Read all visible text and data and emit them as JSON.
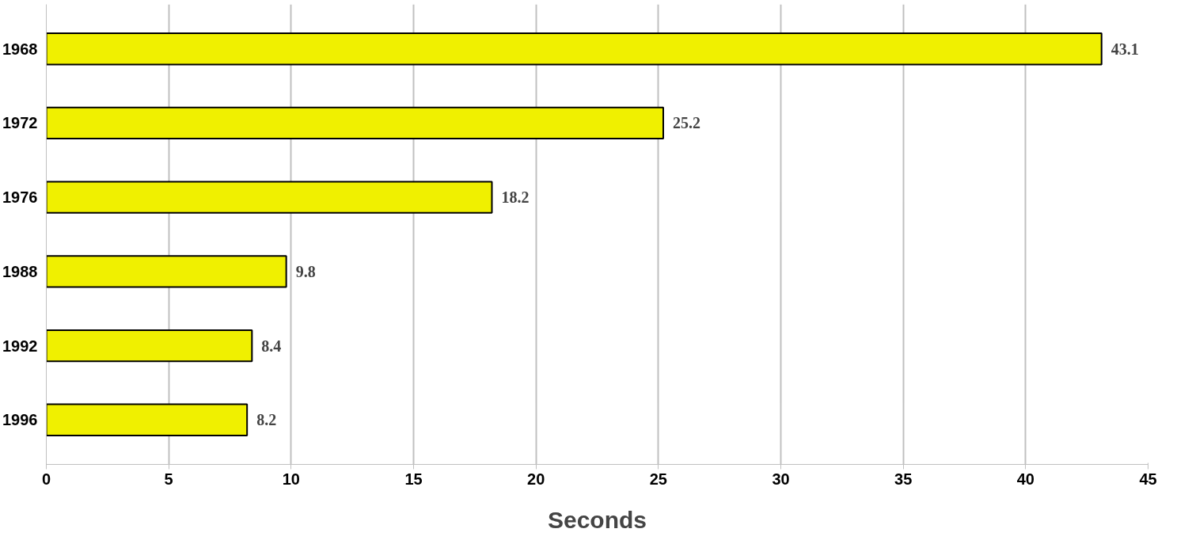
{
  "chart_data": {
    "type": "bar",
    "orientation": "horizontal",
    "xlabel": "Seconds",
    "categories": [
      "1968",
      "1972",
      "1976",
      "1988",
      "1992",
      "1996"
    ],
    "values": [
      43.1,
      25.2,
      18.2,
      9.8,
      8.4,
      8.2
    ],
    "color": "#f0f000",
    "xlim": [
      0,
      45
    ],
    "xticks": [
      0,
      5,
      10,
      15,
      20,
      25,
      30,
      35,
      40,
      45
    ],
    "grid": "x",
    "data_labels": true
  }
}
